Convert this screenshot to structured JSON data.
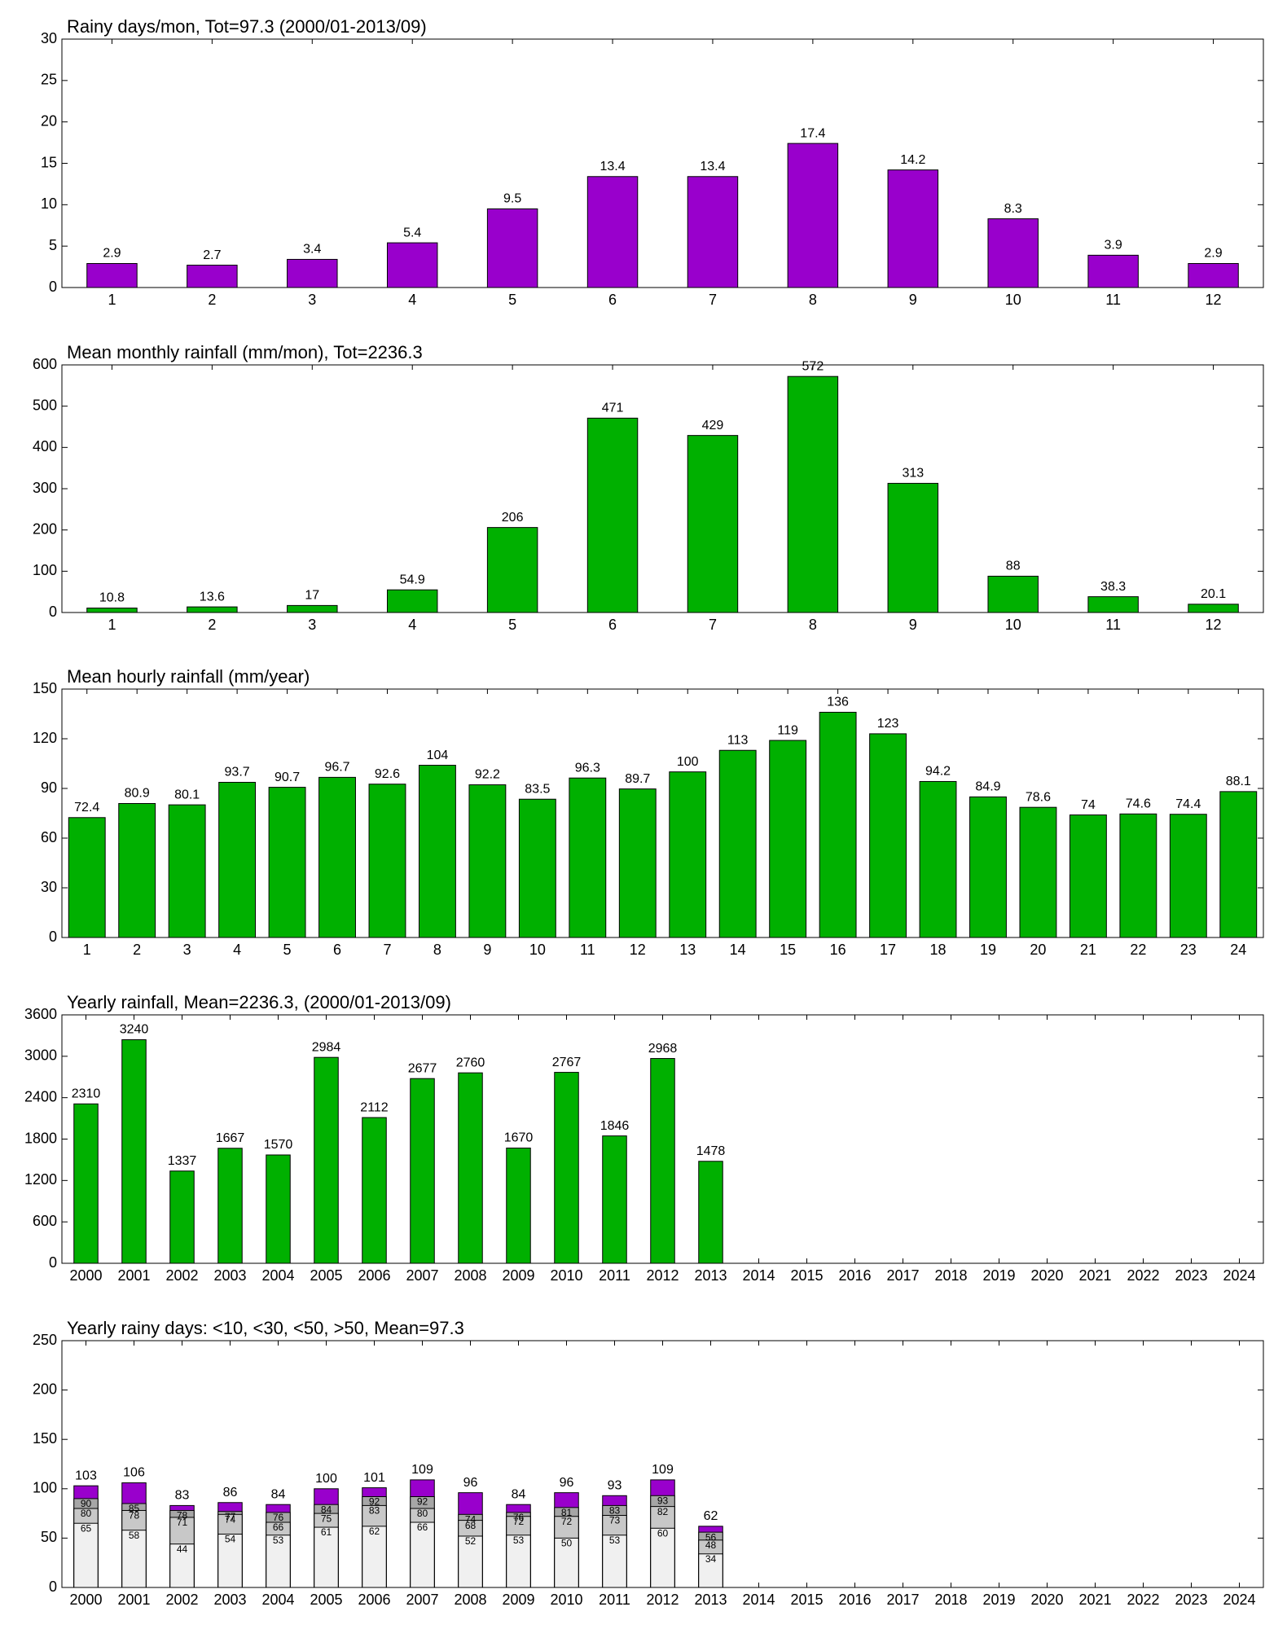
{
  "chart_data": [
    {
      "type": "bar",
      "title": "Rainy days/mon, Tot=97.3 (2000/01-2013/09)",
      "categories": [
        "1",
        "2",
        "3",
        "4",
        "5",
        "6",
        "7",
        "8",
        "9",
        "10",
        "11",
        "12"
      ],
      "values": [
        2.9,
        2.7,
        3.4,
        5.4,
        9.5,
        13.4,
        13.4,
        17.4,
        14.2,
        8.3,
        3.9,
        2.9
      ],
      "color": "#9900cc",
      "ylim": [
        0,
        30
      ],
      "yticks": [
        0,
        5,
        10,
        15,
        20,
        25,
        30
      ],
      "data_labels": true
    },
    {
      "type": "bar",
      "title": "Mean monthly rainfall (mm/mon), Tot=2236.3",
      "categories": [
        "1",
        "2",
        "3",
        "4",
        "5",
        "6",
        "7",
        "8",
        "9",
        "10",
        "11",
        "12"
      ],
      "values": [
        10.8,
        13.6,
        17,
        54.9,
        206,
        471,
        429,
        572,
        313,
        88,
        38.3,
        20.1
      ],
      "color": "#00b000",
      "ylim": [
        0,
        600
      ],
      "yticks": [
        0,
        100,
        200,
        300,
        400,
        500,
        600
      ],
      "data_labels": true
    },
    {
      "type": "bar",
      "title": "Mean hourly rainfall (mm/year)",
      "categories": [
        "1",
        "2",
        "3",
        "4",
        "5",
        "6",
        "7",
        "8",
        "9",
        "10",
        "11",
        "12",
        "13",
        "14",
        "15",
        "16",
        "17",
        "18",
        "19",
        "20",
        "21",
        "22",
        "23",
        "24"
      ],
      "values": [
        72.4,
        80.9,
        80.1,
        93.7,
        90.7,
        96.7,
        92.6,
        104,
        92.2,
        83.5,
        96.3,
        89.7,
        100,
        113,
        119,
        136,
        123,
        94.2,
        84.9,
        78.6,
        74,
        74.6,
        74.4,
        88.1
      ],
      "color": "#00b000",
      "ylim": [
        0,
        150
      ],
      "yticks": [
        0,
        30,
        60,
        90,
        120,
        150
      ],
      "data_labels": true
    },
    {
      "type": "bar",
      "title": "Yearly rainfall, Mean=2236.3, (2000/01-2013/09)",
      "categories": [
        "2000",
        "2001",
        "2002",
        "2003",
        "2004",
        "2005",
        "2006",
        "2007",
        "2008",
        "2009",
        "2010",
        "2011",
        "2012",
        "2013",
        "2014",
        "2015",
        "2016",
        "2017",
        "2018",
        "2019",
        "2020",
        "2021",
        "2022",
        "2023",
        "2024"
      ],
      "values": [
        2310,
        3240,
        1337,
        1667,
        1570,
        2984,
        2112,
        2677,
        2760,
        1670,
        2767,
        1846,
        2968,
        1478,
        null,
        null,
        null,
        null,
        null,
        null,
        null,
        null,
        null,
        null,
        null
      ],
      "color": "#00b000",
      "ylim": [
        0,
        3600
      ],
      "yticks": [
        0,
        600,
        1200,
        1800,
        2400,
        3000,
        3600
      ],
      "data_labels": true
    },
    {
      "type": "bar",
      "title": "Yearly rainy days: <10, <30, <50, >50, Mean=97.3",
      "overlay": true,
      "categories": [
        "2000",
        "2001",
        "2002",
        "2003",
        "2004",
        "2005",
        "2006",
        "2007",
        "2008",
        "2009",
        "2010",
        "2011",
        "2012",
        "2013",
        "2014",
        "2015",
        "2016",
        "2017",
        "2018",
        "2019",
        "2020",
        "2021",
        "2022",
        "2023",
        "2024"
      ],
      "series": [
        {
          "color": "#f0f0f0",
          "values": [
            65,
            58,
            44,
            54,
            53,
            61,
            62,
            66,
            52,
            53,
            50,
            53,
            60,
            34,
            null,
            null,
            null,
            null,
            null,
            null,
            null,
            null,
            null,
            null,
            null
          ]
        },
        {
          "color": "#c8c8c8",
          "values": [
            80,
            78,
            71,
            74,
            66,
            75,
            83,
            80,
            68,
            72,
            72,
            73,
            82,
            48,
            null,
            null,
            null,
            null,
            null,
            null,
            null,
            null,
            null,
            null,
            null
          ]
        },
        {
          "color": "#a6a6a6",
          "values": [
            90,
            85,
            78,
            77,
            76,
            84,
            92,
            92,
            74,
            76,
            81,
            83,
            93,
            56,
            null,
            null,
            null,
            null,
            null,
            null,
            null,
            null,
            null,
            null,
            null
          ]
        },
        {
          "color": "#9900cc",
          "values": [
            103,
            106,
            83,
            86,
            84,
            100,
            101,
            109,
            96,
            84,
            96,
            93,
            109,
            62,
            null,
            null,
            null,
            null,
            null,
            null,
            null,
            null,
            null,
            null,
            null
          ]
        }
      ],
      "ylim": [
        0,
        250
      ],
      "yticks": [
        0,
        50,
        100,
        150,
        200,
        250
      ],
      "data_labels": true
    }
  ]
}
